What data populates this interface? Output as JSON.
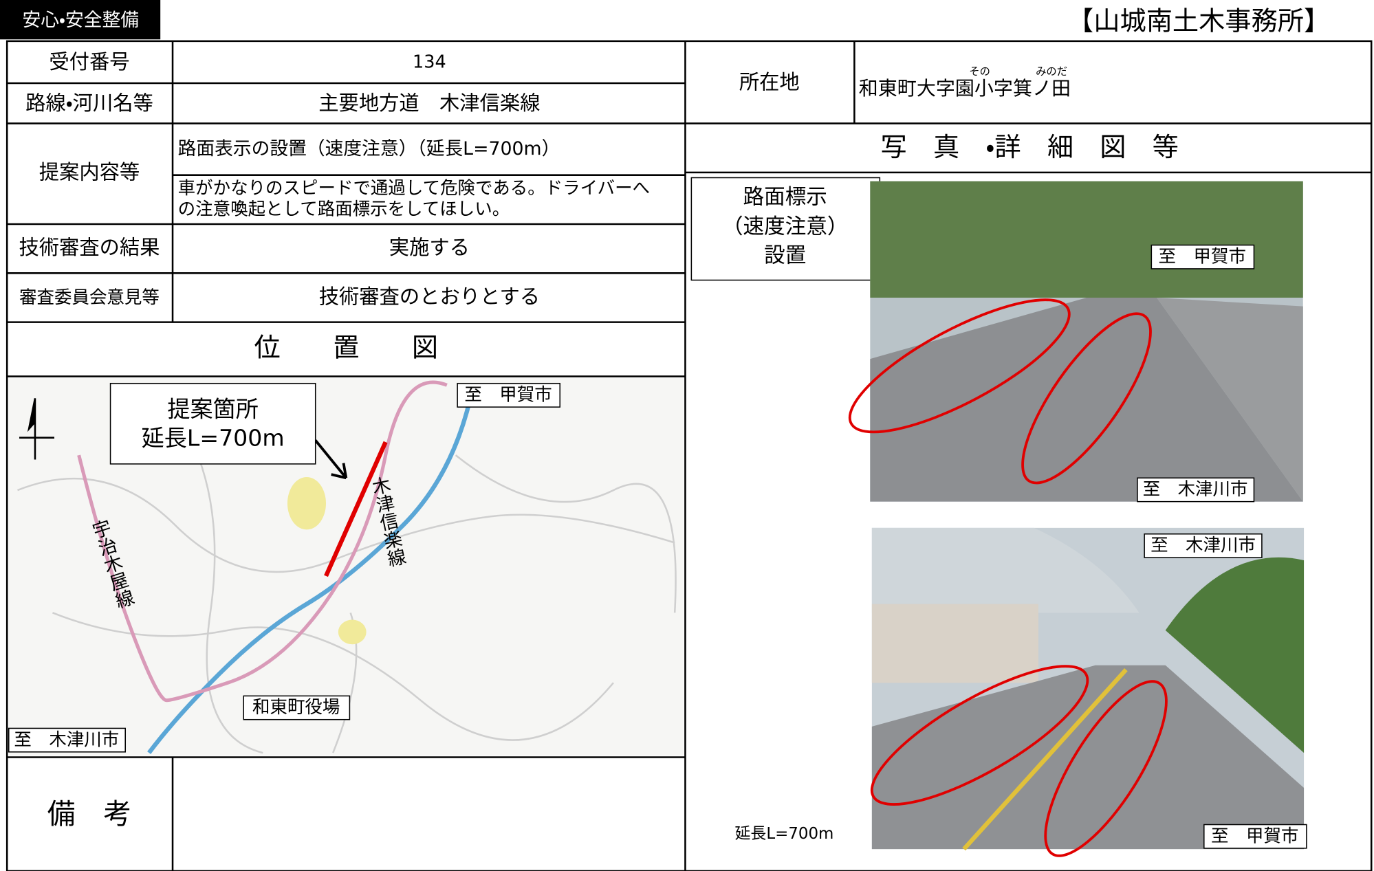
{
  "header": {
    "tag": "安心・安全整備",
    "office": "【山城南土木事務所】"
  },
  "form": {
    "reception_number": {
      "label": "受付番号",
      "value": "134"
    },
    "route": {
      "label": "路線・河川名等",
      "value": "主要地方道　木津信楽線"
    },
    "location": {
      "label": "所在地",
      "value": "和東町大字園小字箕ノ田",
      "ruby": [
        "その",
        "みのだ"
      ]
    },
    "proposal": {
      "label": "提案内容等",
      "title": "路面表示の設置（速度注意）（延長L=700m）",
      "detail": [
        "車がかなりのスピードで通過して危険である。ドライバーへ",
        "の注意喚起として路面標示をしてほしい。"
      ]
    },
    "review_result": {
      "label": "技術審査の結果",
      "value": "実施する"
    },
    "committee_opinion": {
      "label": "審査委員会意見等",
      "value": "技術審査のとおりとする"
    },
    "remarks": {
      "label": "備　考"
    }
  },
  "map": {
    "title": "位　　置　　図",
    "callout": [
      "提案箇所",
      "延長L=700m"
    ],
    "route_label": "木津信楽線",
    "road_label": "宇治木屋線",
    "to_koka": "至　甲賀市",
    "to_kizugawa": "至　木津川市",
    "town_hall": "和東町役場"
  },
  "photos": {
    "title": "写　真　・詳　細　図　等",
    "note": [
      "路面標示",
      "（速度注意）",
      "設置"
    ],
    "photo1_labels": [
      "至　甲賀市",
      "至　木津川市"
    ],
    "photo2_labels": [
      "至　木津川市",
      "至　甲賀市"
    ],
    "length": "延長L=700m"
  }
}
